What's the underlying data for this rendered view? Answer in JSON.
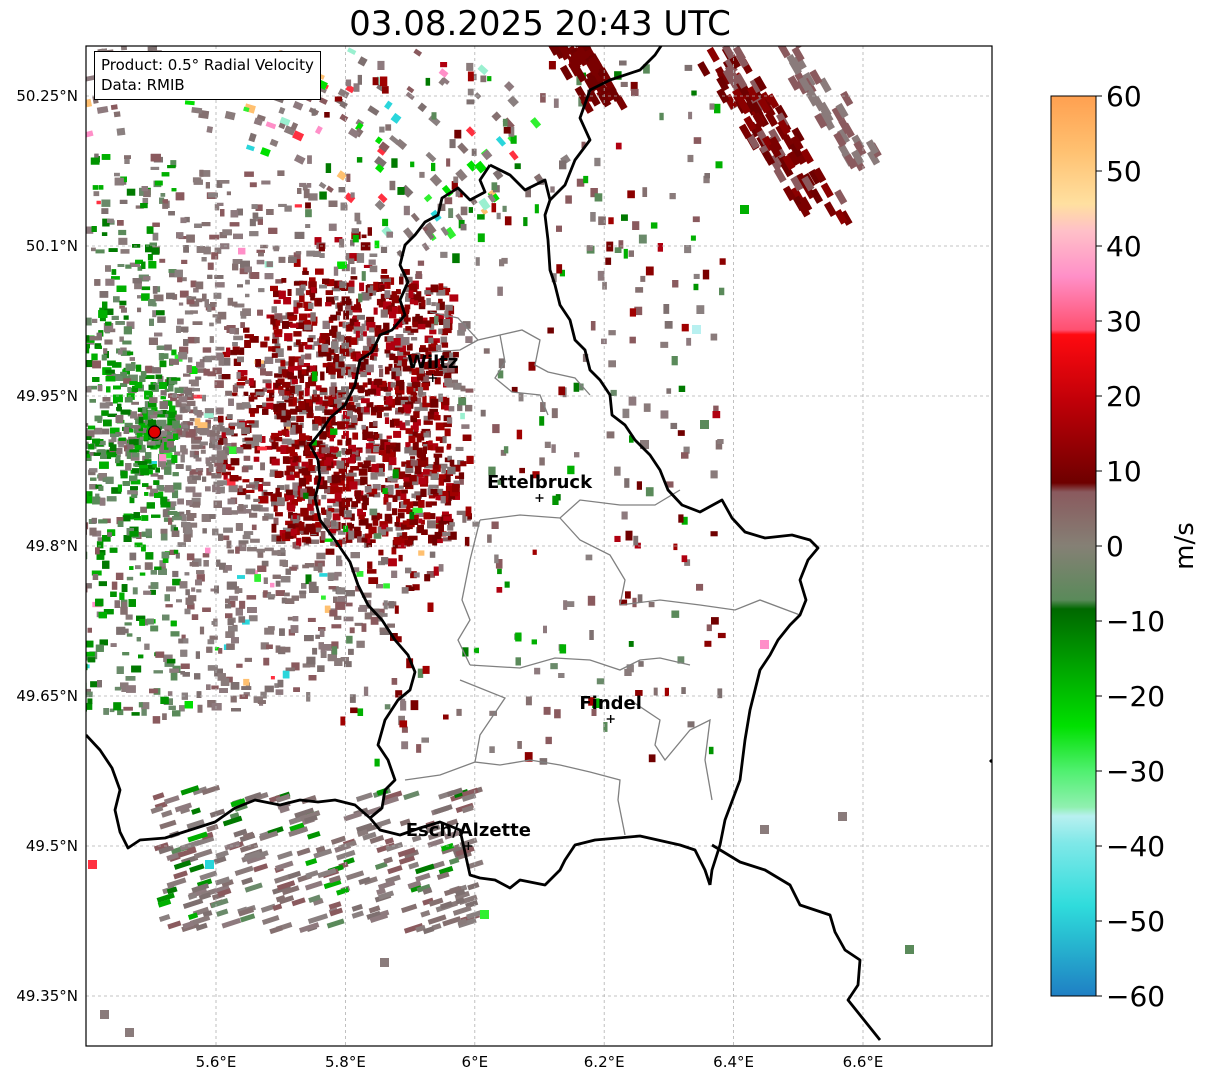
{
  "title": "03.08.2025 20:43 UTC",
  "info": {
    "product": "Product: 0.5° Radial Velocity",
    "source": "Data: RMIB"
  },
  "axes": {
    "lon_ticks": [
      "5.6°E",
      "5.8°E",
      "6°E",
      "6.2°E",
      "6.4°E",
      "6.6°E"
    ],
    "lat_ticks": [
      "50.25°N",
      "50.1°N",
      "49.95°N",
      "49.8°N",
      "49.65°N",
      "49.5°N",
      "49.35°N"
    ]
  },
  "cities": [
    {
      "name": "Wiltz",
      "lon": 5.935,
      "lat": 49.968
    },
    {
      "name": "Ettelbruck",
      "lon": 6.1,
      "lon_label": 6.1,
      "lat": 49.848
    },
    {
      "name": "Findel",
      "lon": 6.21,
      "lat": 49.627
    },
    {
      "name": "Esch/Alzette",
      "lon": 5.99,
      "lat": 49.5
    }
  ],
  "radar_site": {
    "lon": 5.505,
    "lat": 49.914
  },
  "colorbar": {
    "unit": "m/s",
    "ticks": [
      "60",
      "50",
      "40",
      "30",
      "20",
      "10",
      "0",
      "−10",
      "−20",
      "−30",
      "−40",
      "−50",
      "−60"
    ],
    "range": [
      -60,
      60
    ],
    "colors": {
      "cyan": "#2ad6db",
      "green": "#00a000",
      "gray": "#8a7b7b",
      "red": "#7a0000",
      "pink": "#ff8fc8",
      "orange": "#ffa050"
    }
  }
}
